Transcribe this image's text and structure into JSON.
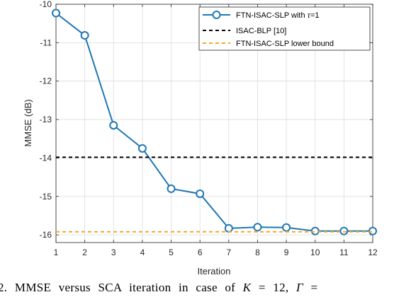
{
  "chart_data": {
    "type": "line",
    "title": "",
    "xlabel": "Iteration",
    "ylabel": "MMSE (dB)",
    "xlim": [
      1,
      12
    ],
    "ylim": [
      -16.2,
      -10
    ],
    "xticks": [
      1,
      2,
      3,
      4,
      5,
      6,
      7,
      8,
      9,
      10,
      11,
      12
    ],
    "yticks": [
      -10,
      -11,
      -12,
      -13,
      -14,
      -15,
      -16
    ],
    "grid": true,
    "legend_position": "top-right",
    "series": [
      {
        "name": "FTN-ISAC-SLP with τ=1",
        "style": "solid line with circle markers",
        "color": "#1f77b4",
        "x": [
          1,
          2,
          3,
          4,
          5,
          6,
          7,
          8,
          9,
          10,
          11,
          12
        ],
        "y": [
          -10.23,
          -10.81,
          -13.15,
          -13.75,
          -14.8,
          -14.93,
          -15.83,
          -15.8,
          -15.81,
          -15.9,
          -15.9,
          -15.9
        ]
      },
      {
        "name": "ISAC-BLP [10]",
        "style": "dashed",
        "color": "#000000",
        "x": [
          1,
          12
        ],
        "y": [
          -13.98,
          -13.98
        ]
      },
      {
        "name": "FTN-ISAC-SLP lower bound",
        "style": "dashed",
        "color": "#f5a623",
        "x": [
          1,
          12
        ],
        "y": [
          -15.92,
          -15.92
        ]
      }
    ]
  },
  "legend": {
    "entry_1_prefix": "FTN-ISAC-SLP with ",
    "entry_1_symbol": "τ",
    "entry_1_suffix": "=1",
    "entry_2": "ISAC-BLP [10]",
    "entry_3": "FTN-ISAC-SLP lower bound"
  },
  "caption": {
    "lead": "2.   MMSE versus SCA iteration in case of ",
    "k_symbol": "K",
    "k_value": " = 12, ",
    "gamma_symbol": "Γ",
    "tail": " ="
  }
}
